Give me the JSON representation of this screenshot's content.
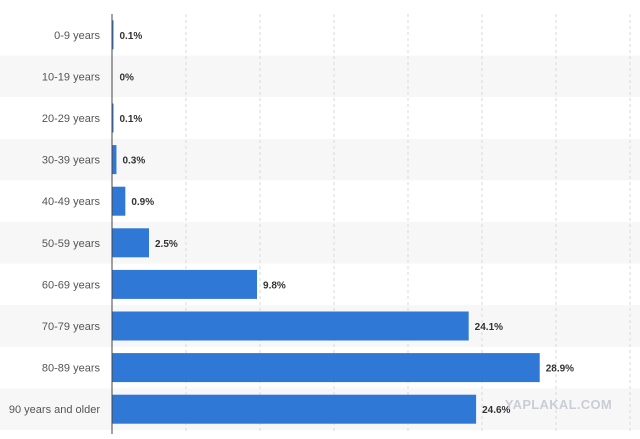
{
  "chart_data": {
    "type": "bar",
    "orientation": "horizontal",
    "categories": [
      "0-9 years",
      "10-19 years",
      "20-29 years",
      "30-39 years",
      "40-49 years",
      "50-59 years",
      "60-69 years",
      "70-79 years",
      "80-89 years",
      "90 years and older"
    ],
    "values": [
      0.1,
      0,
      0.1,
      0.3,
      0.9,
      2.5,
      9.8,
      24.1,
      28.9,
      24.6
    ],
    "value_labels": [
      "0.1%",
      "0%",
      "0.1%",
      "0.3%",
      "0.9%",
      "2.5%",
      "9.8%",
      "24.1%",
      "28.9%",
      "24.6%"
    ],
    "title": "",
    "xlabel": "",
    "ylabel": "",
    "xlim": [
      0,
      35
    ],
    "grid": true,
    "legend": "none",
    "colors": {
      "bar": "#2f78d6",
      "alt_row": "#f7f7f7",
      "grid": "#d9d9d9",
      "axis": "#444444"
    }
  },
  "watermark": "YAPLAKAL.COM"
}
